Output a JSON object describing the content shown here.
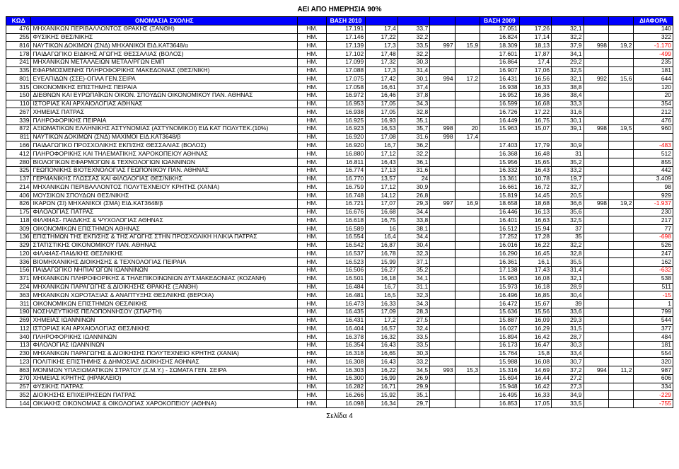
{
  "page_title": "ΑΕΙ ΑΠΟ ΗΜΕΡΗΣΙΑ 90%",
  "footer": "Σελίδα 4",
  "colors": {
    "header_bg": "#0000ff",
    "header_fg": "#ffffff",
    "border": "#000000",
    "negative": "#ff0000",
    "background": "#ffffff"
  },
  "columns": [
    {
      "label": "ΚΩΔ",
      "width": "3%"
    },
    {
      "label": "ΟΝΟΜΑΣΙΑ ΣΧΟΛΗΣ",
      "width": "37%"
    },
    {
      "label": "",
      "width": "3.5%"
    },
    {
      "label": "ΒΑΣΗ 2010",
      "width": "5%"
    },
    {
      "label": "",
      "width": "4%"
    },
    {
      "label": "",
      "width": "4%"
    },
    {
      "label": "",
      "width": "3%"
    },
    {
      "label": "",
      "width": "3%"
    },
    {
      "label": "ΒΑΣΗ 2009",
      "width": "5%"
    },
    {
      "label": "",
      "width": "4%"
    },
    {
      "label": "",
      "width": "4%"
    },
    {
      "label": "",
      "width": "3%"
    },
    {
      "label": "",
      "width": "3%"
    },
    {
      "label": "ΔΙΑΦΟΡΑ",
      "width": "5%"
    }
  ],
  "rows": [
    [
      "476",
      "ΜΗΧΑΝΙΚΩΝ ΠΕΡΙΒΑΛΛΟΝΤΟΣ ΘΡΑΚΗΣ (ΞΑΝΘΗ)",
      "ΗΜ.",
      "17.191",
      "17,4",
      "33,7",
      "",
      "",
      "17.051",
      "17,26",
      "32,1",
      "",
      "",
      "140"
    ],
    [
      "255",
      "ΦΥΣΙΚΗΣ ΘΕΣ/ΝΙΚΗΣ",
      "ΗΜ.",
      "17.146",
      "17,22",
      "32,2",
      "",
      "",
      "16.824",
      "17,14",
      "32,2",
      "",
      "",
      "322"
    ],
    [
      "816",
      "ΝΑΥΤΙΚΩΝ ΔΟΚΙΜΩΝ (ΣΝΔ) ΜΗΧΑΝΙΚΟΙ              ΕΙΔ.ΚΑΤ3648/α",
      "ΗΜ.",
      "17.139",
      "17,3",
      "33,5",
      "997",
      "15,9",
      "18.309",
      "18,13",
      "37,9",
      "998",
      "19,2",
      "-1.170"
    ],
    [
      "178",
      "ΠΑΙΔΑΓΩΓΙΚΟ ΕΙΔΙΚΗΣ ΑΓΩΓΗΣ ΘΕΣΣΑΛΙΑΣ (ΒΟΛΟΣ)",
      "ΗΜ.",
      "17.102",
      "17,48",
      "32,2",
      "",
      "",
      "17.601",
      "17,87",
      "34,1",
      "",
      "",
      "-499"
    ],
    [
      "241",
      "ΜΗΧΑΝΙΚΩΝ ΜΕΤΑΛΛΕΙΩΝ ΜΕΤΑΛ/ΡΓΩΝ ΕΜΠ",
      "ΗΜ.",
      "17.099",
      "17,32",
      "30,3",
      "",
      "",
      "16.864",
      "17,4",
      "29,2",
      "",
      "",
      "235"
    ],
    [
      "335",
      "ΕΦΑΡΜΟΣΜΕΝΗΣ ΠΛΗΡΟΦΟΡΙΚΗΣ ΜΑΚΕΔΟΝΙΑΣ (ΘΕΣ/ΝΙΚΗ)",
      "ΗΜ.",
      "17.088",
      "17,3",
      "31,4",
      "",
      "",
      "16.907",
      "17,06",
      "32,5",
      "",
      "",
      "181"
    ],
    [
      "801",
      "ΕΥΕΛΠΙΔΩΝ (ΣΣΕ)-ΟΠΛΑ                             ΓΕΝ.ΣΕΙΡΑ",
      "ΗΜ.",
      "17.075",
      "17,42",
      "30,1",
      "994",
      "17,2",
      "16.431",
      "16,56",
      "32,1",
      "992",
      "15,6",
      "644"
    ],
    [
      "315",
      "ΟΙΚΟΝΟΜΙΚΗΣ ΕΠΙΣΤΗΜΗΣ ΠΕΙΡΑΙΑ",
      "ΗΜ.",
      "17.058",
      "16,61",
      "37,4",
      "",
      "",
      "16.938",
      "16,33",
      "38,8",
      "",
      "",
      "120"
    ],
    [
      "150",
      "ΔΙΕΘΝΩΝ ΚΑΙ ΕΥΡΩΠΑΪΚΩΝ ΟΙΚΟΝ. ΣΠΟΥΔΩΝ ΟΙΚΟΝΟΜΙΚΟΥ ΠΑΝ. ΑΘΗΝΑΣ",
      "ΗΜ.",
      "16.972",
      "16,46",
      "37,8",
      "",
      "",
      "16.952",
      "16,36",
      "38,4",
      "",
      "",
      "20"
    ],
    [
      "110",
      "ΙΣΤΟΡΙΑΣ ΚΑΙ ΑΡΧΑΙΟΛΟΓΙΑΣ ΑΘΗΝΑΣ",
      "ΗΜ.",
      "16.953",
      "17,05",
      "34,3",
      "",
      "",
      "16.599",
      "16,68",
      "33,3",
      "",
      "",
      "354"
    ],
    [
      "267",
      "ΧΗΜΕΙΑΣ ΠΑΤΡΑΣ",
      "ΗΜ.",
      "16.938",
      "17,05",
      "32,8",
      "",
      "",
      "16.726",
      "17,22",
      "31,6",
      "",
      "",
      "212"
    ],
    [
      "339",
      "ΠΛΗΡΟΦΟΡΙΚΗΣ ΠΕΙΡΑΙΑ",
      "ΗΜ.",
      "16.925",
      "16,93",
      "35,1",
      "",
      "",
      "16.449",
      "16,75",
      "30,1",
      "",
      "",
      "476"
    ],
    [
      "872",
      "ΑΞΙΩΜΑΤΙΚΩΝ ΕΛΛΗΝΙΚΗΣ ΑΣΤΥΝΟΜΙΑΣ (ΑΣΤΥΝΟΜΙΚΟΙ)  ΕΙΔ ΚΑΤ ΠΟΛΥΤΕΚ.(10%)",
      "ΗΜ.",
      "16.923",
      "16,53",
      "35,7",
      "998",
      "20",
      "15.963",
      "15,07",
      "39,1",
      "998",
      "19,5",
      "960"
    ],
    [
      "811",
      "ΝΑΥΤΙΚΩΝ ΔΟΚΙΜΩΝ (ΣΝΔ) ΜΑΧΙΜΟΙ                ΕΙΔ.ΚΑΤ3648/β",
      "ΗΜ.",
      "16.920",
      "17,08",
      "31,6",
      "998",
      "17,4",
      "",
      "",
      "",
      "",
      "",
      ""
    ],
    [
      "166",
      "ΠΑΙΔΑΓΩΓΙΚΟ ΠΡΟΣΧΟΛΙΚΗΣ ΕΚΠ/ΣΗΣ ΘΕΣΣΑΛΙΑΣ (ΒΟΛΟΣ)",
      "ΗΜ.",
      "16.920",
      "16,7",
      "36,2",
      "",
      "",
      "17.403",
      "17,79",
      "30,9",
      "",
      "",
      "-483"
    ],
    [
      "412",
      "ΠΛΗΡΟΦΟΡΙΚΗΣ ΚΑΙ ΤΗΛΕΜΑΤΙΚΗΣ ΧΑΡΟΚΟΠΕΙΟΥ ΑΘΗΝΑΣ",
      "ΗΜ.",
      "16.880",
      "17,12",
      "32,2",
      "",
      "",
      "16.368",
      "16,48",
      "31",
      "",
      "",
      "512"
    ],
    [
      "280",
      "ΒΙΟΛΟΓΙΚΩΝ ΕΦΑΡΜΟΓΩΝ & ΤΕΧΝΟΛΟΓΙΩΝ ΙΩΑΝΝΙΝΩΝ",
      "ΗΜ.",
      "16.811",
      "16,43",
      "36,1",
      "",
      "",
      "15.956",
      "15,65",
      "35,2",
      "",
      "",
      "855"
    ],
    [
      "325",
      "ΓΕΩΠΟΝΙΚΗΣ ΒΙΟΤΕΧΝΟΛΟΓΙΑΣ ΓΕΩΠΟΝΙΚΟΥ ΠΑΝ. ΑΘΗΝΑΣ",
      "ΗΜ.",
      "16.774",
      "17,13",
      "31,6",
      "",
      "",
      "16.332",
      "16,43",
      "33,2",
      "",
      "",
      "442"
    ],
    [
      "137",
      "ΓΕΡΜΑΝΙΚΗΣ ΓΛΩΣΣΑΣ ΚΑΙ ΦΙΛΟΛΟΓΙΑΣ ΘΕΣ/ΝΙΚΗΣ",
      "ΗΜ.",
      "16.770",
      "13,57",
      "24",
      "",
      "",
      "13.361",
      "10,78",
      "19,7",
      "",
      "",
      "3.409"
    ],
    [
      "214",
      "ΜΗΧΑΝΙΚΩΝ ΠΕΡΙΒΑΛΛΟΝΤΟΣ ΠΟΛΥΤΕΧΝΕΙΟΥ ΚΡΗΤΗΣ (ΧΑΝΙΑ)",
      "ΗΜ.",
      "16.759",
      "17,12",
      "30,9",
      "",
      "",
      "16.661",
      "16,72",
      "32,7",
      "",
      "",
      "98"
    ],
    [
      "406",
      "ΜΟΥΣΙΚΩΝ ΣΠΟΥΔΩΝ ΘΕΣ/ΝΙΚΗΣ",
      "ΗΜ.",
      "16.748",
      "14,12",
      "26,8",
      "",
      "",
      "15.819",
      "14,45",
      "20,5",
      "",
      "",
      "929"
    ],
    [
      "826",
      "ΙΚΑΡΩΝ (ΣΙ) ΜΗΧΑΝΙΚΟΙ (ΣΜΑ)                       ΕΙΔ.ΚΑΤ3648/β",
      "ΗΜ.",
      "16.721",
      "17,07",
      "29,3",
      "997",
      "16,9",
      "18.658",
      "18,68",
      "36,6",
      "998",
      "19,2",
      "-1.937"
    ],
    [
      "175",
      "ΦΙΛΟΛΟΓΙΑΣ ΠΑΤΡΑΣ",
      "ΗΜ.",
      "16.676",
      "16,68",
      "34,4",
      "",
      "",
      "16.446",
      "16,13",
      "35,6",
      "",
      "",
      "230"
    ],
    [
      "118",
      "ΦΙΛ/ΦΙΑΣ- ΠΑΙΔ/ΚΗΣ & ΨΥΧΟΛΟΓΙΑΣ ΑΘΗΝΑΣ",
      "ΗΜ.",
      "16.618",
      "16,75",
      "33,8",
      "",
      "",
      "16.401",
      "16,63",
      "32,5",
      "",
      "",
      "217"
    ],
    [
      "309",
      "ΟΙΚΟΝΟΜΙΚΩΝ ΕΠΙΣΤΗΜΩΝ ΑΘΗΝΑΣ",
      "ΗΜ.",
      "16.589",
      "16",
      "38,1",
      "",
      "",
      "16.512",
      "15,94",
      "37",
      "",
      "",
      "77"
    ],
    [
      "136",
      "ΕΠΙΣΤΗΜΩΝ ΤΗΣ ΕΚΠ/ΣΗΣ & ΤΗΣ ΑΓΩΓΗΣ ΣΤΗΝ ΠΡΟΣΧΟΛΙΚΗ ΗΛΙΚΙΑ ΠΑΤΡΑΣ",
      "ΗΜ.",
      "16.554",
      "16,4",
      "34,4",
      "",
      "",
      "17.252",
      "17,28",
      "35",
      "",
      "",
      "-698"
    ],
    [
      "329",
      "ΣΤΑΤΙΣΤΙΚΗΣ ΟΙΚΟΝΟΜΙΚΟΥ ΠΑΝ. ΑΘΗΝΑΣ",
      "ΗΜ.",
      "16.542",
      "16,87",
      "30,4",
      "",
      "",
      "16.016",
      "16,22",
      "32,2",
      "",
      "",
      "526"
    ],
    [
      "120",
      "ΦΙΛ/ΦΙΑΣ-ΠΑΙΔ/ΚΗΣ ΘΕΣ/ΝΙΚΗΣ",
      "ΗΜ.",
      "16.537",
      "16,78",
      "32,3",
      "",
      "",
      "16.290",
      "16,45",
      "32,8",
      "",
      "",
      "247"
    ],
    [
      "336",
      "ΒΙΟΜΗΧΑΝΙΚΗΣ ΔΙΟΙΚΗΣΗΣ & ΤΕΧΝΟΛΟΓΙΑΣ ΠΕΙΡΑΙΑ",
      "ΗΜ.",
      "16.523",
      "15,99",
      "37,1",
      "",
      "",
      "16.361",
      "16,1",
      "35,5",
      "",
      "",
      "162"
    ],
    [
      "156",
      "ΠΑΙΔΑΓΩΓΙΚΟ ΝΗΠΙΑΓΩΓΩΝ ΙΩΑΝΝΙΝΩΝ",
      "ΗΜ.",
      "16.506",
      "16,27",
      "35,2",
      "",
      "",
      "17.138",
      "17,43",
      "31,4",
      "",
      "",
      "-632"
    ],
    [
      "371",
      "ΜΗΧΑΝΙΚΩΝ ΠΛΗΡΟΦΟΡΙΚΗΣ & ΤΗΛΕΠΙΚΟΙΝΩΝΙΩΝ ΔΥΤ.ΜΑΚΕΔΟΝΙΑΣ (ΚΟΖΑΝΗ)",
      "ΗΜ.",
      "16.501",
      "16,18",
      "34,1",
      "",
      "",
      "15.963",
      "16,08",
      "32,1",
      "",
      "",
      "538"
    ],
    [
      "224",
      "ΜΗΧΑΝΙΚΩΝ ΠΑΡΑΓΩΓΗΣ & ΔΙΟΙΚΗΣΗΣ ΘΡΑΚΗΣ (ΞΑΝΘΗ)",
      "ΗΜ.",
      "16.484",
      "16,7",
      "31,1",
      "",
      "",
      "15.973",
      "16,18",
      "28,9",
      "",
      "",
      "511"
    ],
    [
      "363",
      "ΜΗΧΑΝΙΚΩΝ ΧΩΡΟΤΑΞΙΑΣ & ΑΝΑΠΤΥΞΗΣ ΘΕΣ/ΝΙΚΗΣ (ΒΕΡΟΙΑ)",
      "ΗΜ.",
      "16.481",
      "16,5",
      "32,3",
      "",
      "",
      "16.496",
      "16,85",
      "30,4",
      "",
      "",
      "-15"
    ],
    [
      "311",
      "ΟΙΚΟΝΟΜΙΚΩΝ ΕΠΙΣΤΗΜΩΝ ΘΕΣ/ΝΙΚΗΣ",
      "ΗΜ.",
      "16.473",
      "16,33",
      "34,3",
      "",
      "",
      "16.472",
      "15,67",
      "39",
      "",
      "",
      "1"
    ],
    [
      "190",
      "ΝΟΣΗΛΕΥΤΙΚΗΣ ΠΕΛΟΠΟΝΝΗΣΟΥ (ΣΠΑΡΤΗ)",
      "ΗΜ.",
      "16.435",
      "17,09",
      "28,3",
      "",
      "",
      "15.636",
      "15,56",
      "33,6",
      "",
      "",
      "799"
    ],
    [
      "269",
      "ΧΗΜΕΙΑΣ ΙΩΑΝΝΙΝΩΝ",
      "ΗΜ.",
      "16.431",
      "17,2",
      "27,5",
      "",
      "",
      "15.887",
      "16,09",
      "29,3",
      "",
      "",
      "544"
    ],
    [
      "112",
      "ΙΣΤΟΡΙΑΣ ΚΑΙ ΑΡΧΑΙΟΛΟΓΙΑΣ ΘΕΣ/ΝΙΚΗΣ",
      "ΗΜ.",
      "16.404",
      "16,57",
      "32,4",
      "",
      "",
      "16.027",
      "16,29",
      "31,5",
      "",
      "",
      "377"
    ],
    [
      "340",
      "ΠΛΗΡΟΦΟΡΙΚΗΣ ΙΩΑΝΝΙΝΩΝ",
      "ΗΜ.",
      "16.378",
      "16,32",
      "33,5",
      "",
      "",
      "15.894",
      "16,42",
      "28,7",
      "",
      "",
      "484"
    ],
    [
      "113",
      "ΦΙΛΟΛΟΓΙΑΣ ΙΩΑΝΝΙΝΩΝ",
      "ΗΜ.",
      "16.354",
      "16,43",
      "33,5",
      "",
      "",
      "16.173",
      "16,47",
      "30,3",
      "",
      "",
      "181"
    ],
    [
      "230",
      "ΜΗΧΑΝΙΚΩΝ ΠΑΡΑΓΩΓΗΣ & ΔΙΟΙΚΗΣΗΣ ΠΟΛΥΤΕΧΝΕΙΟ ΚΡΗΤΗΣ (ΧΑΝΙΑ)",
      "ΗΜ.",
      "16.318",
      "16,65",
      "30,3",
      "",
      "",
      "15.764",
      "15,8",
      "33,4",
      "",
      "",
      "554"
    ],
    [
      "123",
      "ΠΟΛΙΤΙΚΗΣ ΕΠΙΣΤΗΜΗΣ & ΔΗΜΟΣΙΑΣ ΔΙΟΙΚΗΣΗΣ ΑΘΗΝΑΣ",
      "ΗΜ.",
      "16.308",
      "16,43",
      "33,2",
      "",
      "",
      "15.988",
      "16,08",
      "30,7",
      "",
      "",
      "320"
    ],
    [
      "863",
      "ΜΟΝΙΜΩΝ ΥΠΑΞΙΩΜΑΤΙΚΩΝ ΣΤΡΑΤΟΥ (Σ.Μ.Υ.) - ΣΩΜΑΤΑ       ΓΕΝ. ΣΕΙΡΑ",
      "ΗΜ.",
      "16.303",
      "16,22",
      "34,5",
      "993",
      "15,3",
      "15.316",
      "14,69",
      "37,2",
      "994",
      "11,2",
      "987"
    ],
    [
      "270",
      "ΧΗΜΕΙΑΣ ΚΡΗΤΗΣ (ΗΡΑΚΛΕΙΟ)",
      "ΗΜ.",
      "16.300",
      "16,99",
      "26,9",
      "",
      "",
      "15.694",
      "16,44",
      "27,2",
      "",
      "",
      "606"
    ],
    [
      "257",
      "ΦΥΣΙΚΗΣ ΠΑΤΡΑΣ",
      "ΗΜ.",
      "16.282",
      "16,71",
      "29,9",
      "",
      "",
      "15.948",
      "16,42",
      "27,3",
      "",
      "",
      "334"
    ],
    [
      "352",
      "ΔΙΟΙΚΗΣΗΣ ΕΠΙΧΕΙΡΗΣΕΩΝ ΠΑΤΡΑΣ",
      "ΗΜ.",
      "16.266",
      "15,92",
      "35,1",
      "",
      "",
      "16.495",
      "16,33",
      "34,9",
      "",
      "",
      "-229"
    ],
    [
      "144",
      "ΟΙΚΙΑΚΗΣ ΟΙΚΟΝΟΜΙΑΣ & ΟΙΚΟΛΟΓΙΑΣ ΧΑΡΟΚΟΠΕΙΟΥ (ΑΘΗΝΑ)",
      "ΗΜ.",
      "16.098",
      "16,34",
      "29,7",
      "",
      "",
      "16.853",
      "17,05",
      "33,5",
      "",
      "",
      "-755"
    ]
  ]
}
